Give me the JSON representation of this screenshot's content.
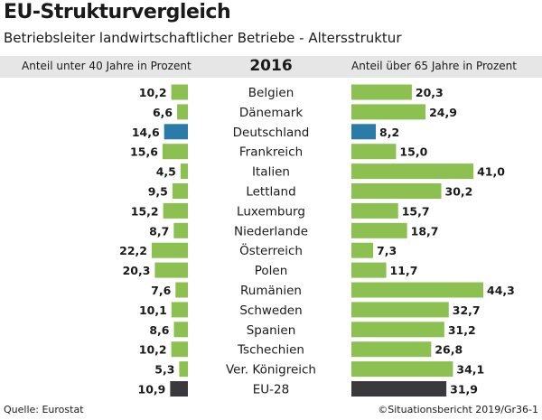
{
  "header": {
    "title": "EU-Strukturvergleich",
    "subtitle": "Betriebsleiter landwirtschaftlicher Betriebe - Altersstruktur"
  },
  "columns": {
    "left_label": "Anteil unter 40 Jahre in Prozent",
    "year": "2016",
    "right_label": "Anteil über 65 Jahre in Prozent"
  },
  "footer": {
    "source": "Quelle: Eurostat",
    "credit": "©Situationsbericht 2019/Gr36-1"
  },
  "colors": {
    "green": "#8cc152",
    "blue": "#2b7ba8",
    "dark": "#3a3a3c"
  },
  "chart_data": [
    {
      "type": "bar",
      "orientation": "horizontal",
      "direction": "right-to-left",
      "categories": [
        "Belgien",
        "Dänemark",
        "Deutschland",
        "Frankreich",
        "Italien",
        "Lettland",
        "Luxemburg",
        "Niederlande",
        "Österreich",
        "Polen",
        "Rumänien",
        "Schweden",
        "Spanien",
        "Tschechien",
        "Ver. Königreich",
        "EU-28"
      ],
      "series": [
        {
          "name": "Anteil unter 40 Jahre in Prozent",
          "values": [
            10.2,
            6.6,
            14.6,
            15.6,
            4.5,
            9.5,
            15.2,
            8.7,
            22.2,
            20.3,
            7.6,
            10.1,
            8.6,
            10.2,
            5.3,
            10.9
          ],
          "labels": [
            "10,2",
            "6,6",
            "14,6",
            "15,6",
            "4,5",
            "9,5",
            "15,2",
            "8,7",
            "22,2",
            "20,3",
            "7,6",
            "10,1",
            "8,6",
            "10,2",
            "5,3",
            "10,9"
          ]
        }
      ],
      "highlight": {
        "Deutschland": "blue",
        "EU-28": "dark"
      },
      "xlim": [
        0,
        22.2
      ]
    },
    {
      "type": "bar",
      "orientation": "horizontal",
      "direction": "left-to-right",
      "categories": [
        "Belgien",
        "Dänemark",
        "Deutschland",
        "Frankreich",
        "Italien",
        "Lettland",
        "Luxemburg",
        "Niederlande",
        "Österreich",
        "Polen",
        "Rumänien",
        "Schweden",
        "Spanien",
        "Tschechien",
        "Ver. Königreich",
        "EU-28"
      ],
      "series": [
        {
          "name": "Anteil über 65 Jahre in Prozent",
          "values": [
            20.3,
            24.9,
            8.2,
            15.0,
            41.0,
            30.2,
            15.7,
            18.7,
            7.3,
            11.7,
            44.3,
            32.7,
            31.2,
            26.8,
            34.1,
            31.9
          ],
          "labels": [
            "20,3",
            "24,9",
            "8,2",
            "15,0",
            "41,0",
            "30,2",
            "15,7",
            "18,7",
            "7,3",
            "11,7",
            "44,3",
            "32,7",
            "31,2",
            "26,8",
            "34,1",
            "31,9"
          ]
        }
      ],
      "highlight": {
        "Deutschland": "blue",
        "EU-28": "dark"
      },
      "xlim": [
        0,
        44.3
      ]
    }
  ]
}
